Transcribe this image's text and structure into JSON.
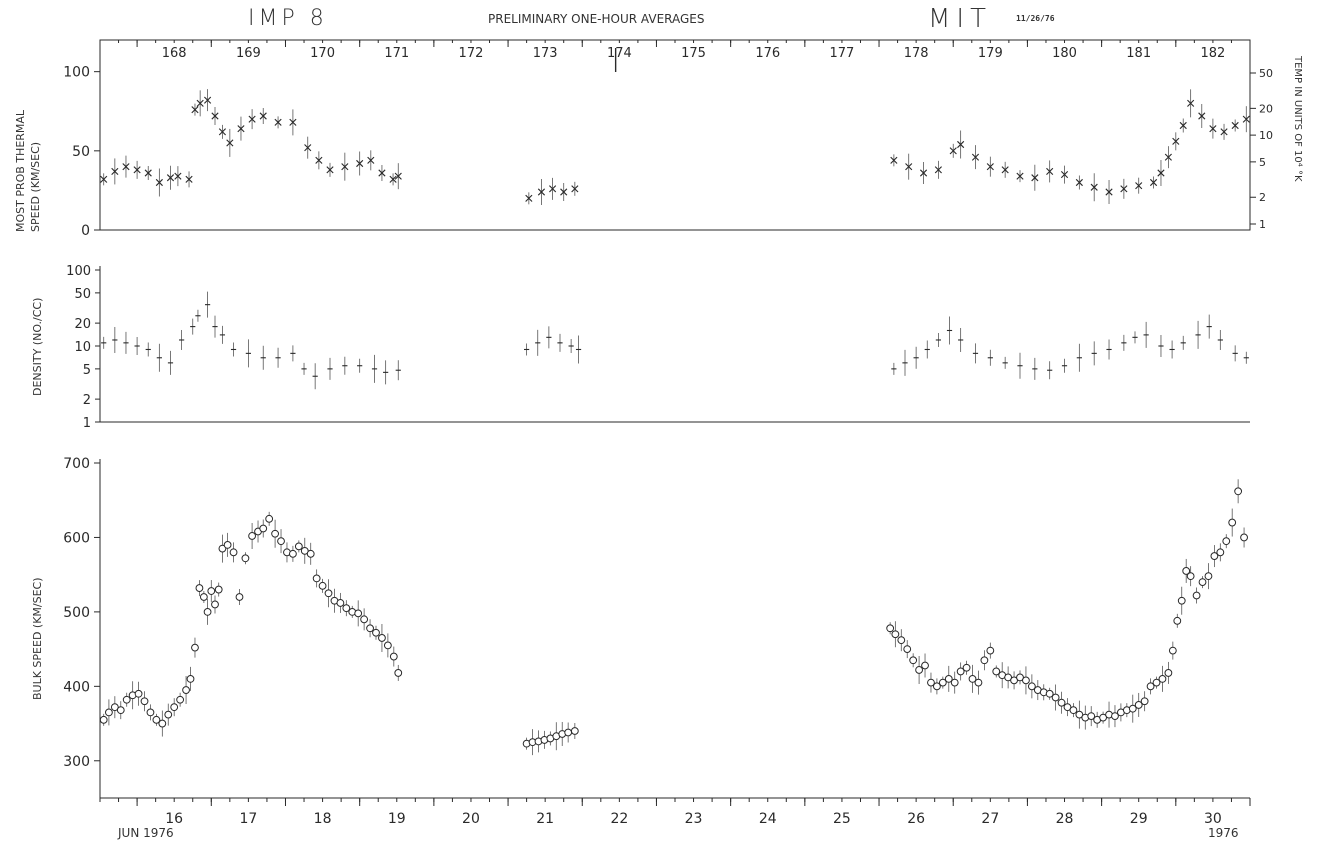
{
  "header": {
    "spacecraft": "IMP 8",
    "subtitle": "PRELIMINARY ONE-HOUR AVERAGES",
    "institution": "MIT",
    "date": "11/26/76"
  },
  "footer": {
    "month_year": "JUN 1976",
    "year_end": "1976"
  },
  "chart_data": [
    {
      "type": "scatter",
      "title": "",
      "ylabel_lines": [
        "MOST PROB THERMAL",
        "SPEED (KM/SEC)"
      ],
      "ylabel_right": "TEMP IN UNITS OF 10⁴ °K",
      "xlim": [
        15.5,
        31.0
      ],
      "ylim": [
        0,
        120
      ],
      "yticks": [
        0,
        50,
        100
      ],
      "yticks_right": [
        1,
        2,
        5,
        10,
        20,
        50
      ],
      "x_top_ticks": [
        "168",
        "169",
        "170",
        "171",
        "172",
        "173",
        "174",
        "175",
        "176",
        "177",
        "178",
        "179",
        "180",
        "181",
        "182"
      ],
      "marker": "x",
      "series": [
        {
          "x": [
            15.55,
            15.7,
            15.85,
            16.0,
            16.15,
            16.3,
            16.45,
            16.55,
            16.7
          ],
          "y": [
            32,
            37,
            40,
            38,
            36,
            30,
            33,
            34,
            32
          ]
        },
        {
          "x": [
            16.78,
            16.85,
            16.95,
            17.05,
            17.15,
            17.25,
            17.4,
            17.55,
            17.7,
            17.9,
            18.1,
            18.3,
            18.45,
            18.6,
            18.8,
            19.0,
            19.15,
            19.3,
            19.45,
            19.52
          ],
          "y": [
            76,
            80,
            82,
            72,
            62,
            55,
            64,
            70,
            72,
            68,
            68,
            52,
            44,
            38,
            40,
            42,
            44,
            36,
            32,
            34
          ]
        },
        {
          "x": [
            21.28,
            21.45,
            21.6,
            21.75,
            21.9
          ],
          "y": [
            20,
            24,
            26,
            24,
            26
          ]
        },
        {
          "x": [
            26.2,
            26.4,
            26.6,
            26.8,
            27.0,
            27.1,
            27.3,
            27.5,
            27.7,
            27.9,
            28.1,
            28.3,
            28.5,
            28.7,
            28.9,
            29.1,
            29.3,
            29.5,
            29.7,
            29.8,
            29.9,
            30.0,
            30.1,
            30.2,
            30.35,
            30.5,
            30.65,
            30.8,
            30.95
          ],
          "y": [
            44,
            40,
            36,
            38,
            50,
            54,
            46,
            40,
            38,
            34,
            33,
            37,
            35,
            30,
            27,
            24,
            26,
            28,
            30,
            36,
            46,
            56,
            66,
            80,
            72,
            64,
            62,
            66,
            70
          ]
        }
      ]
    },
    {
      "type": "scatter",
      "title": "",
      "ylabel": "DENSITY (NO./CC)",
      "yscale": "log",
      "ylim": [
        1,
        100
      ],
      "yticks": [
        1,
        2,
        5,
        10,
        20,
        50,
        100
      ],
      "marker": "+",
      "series": [
        {
          "x": [
            15.55,
            15.7,
            15.85,
            16.0,
            16.15,
            16.3,
            16.45,
            16.6,
            16.75,
            16.82,
            16.95,
            17.05,
            17.15,
            17.3,
            17.5,
            17.7,
            17.9,
            18.1,
            18.25,
            18.4,
            18.6,
            18.8,
            19.0,
            19.2,
            19.35,
            19.52
          ],
          "y": [
            11,
            12,
            11,
            10,
            9,
            7,
            6,
            12,
            18,
            25,
            35,
            18,
            14,
            9,
            8,
            7,
            7,
            8,
            5,
            4,
            5,
            5.5,
            5.5,
            5,
            4.5,
            4.8
          ]
        },
        {
          "x": [
            21.25,
            21.4,
            21.55,
            21.7,
            21.85,
            21.95
          ],
          "y": [
            9,
            11,
            13,
            11,
            10,
            9
          ]
        },
        {
          "x": [
            26.2,
            26.35,
            26.5,
            26.65,
            26.8,
            26.95,
            27.1,
            27.3,
            27.5,
            27.7,
            27.9,
            28.1,
            28.3,
            28.5,
            28.7,
            28.9,
            29.1,
            29.3,
            29.45,
            29.6,
            29.8,
            29.95,
            30.1,
            30.3,
            30.45,
            30.6,
            30.8,
            30.95
          ],
          "y": [
            5,
            6,
            7,
            9,
            12,
            16,
            12,
            8,
            7,
            6,
            5.5,
            5,
            4.8,
            5.5,
            7,
            8,
            9,
            11,
            13,
            14,
            10,
            9,
            11,
            14,
            18,
            12,
            8,
            7
          ]
        }
      ]
    },
    {
      "type": "scatter",
      "title": "",
      "ylabel": "BULK SPEED (KM/SEC)",
      "ylim": [
        250,
        700
      ],
      "yticks": [
        300,
        400,
        500,
        600,
        700
      ],
      "x_bottom_ticks": [
        "16",
        "17",
        "18",
        "19",
        "20",
        "21",
        "22",
        "23",
        "24",
        "25",
        "26",
        "27",
        "28",
        "29",
        "30"
      ],
      "marker": "o",
      "series": [
        {
          "x": [
            15.55,
            15.62,
            15.7,
            15.78,
            15.86,
            15.94,
            16.02,
            16.1,
            16.18,
            16.26,
            16.34,
            16.42,
            16.5,
            16.58,
            16.66,
            16.72,
            16.78,
            16.84,
            16.9,
            16.95,
            17.0,
            17.05,
            17.1,
            17.15,
            17.22,
            17.3,
            17.38,
            17.46,
            17.55,
            17.63,
            17.7,
            17.78,
            17.86,
            17.94,
            18.02,
            18.1,
            18.18,
            18.26,
            18.34,
            18.42,
            18.5,
            18.58,
            18.66,
            18.74,
            18.82,
            18.9,
            18.98,
            19.06,
            19.14,
            19.22,
            19.3,
            19.38,
            19.46,
            19.52
          ],
          "y": [
            355,
            365,
            372,
            368,
            382,
            388,
            390,
            380,
            365,
            355,
            350,
            362,
            372,
            382,
            395,
            410,
            452,
            532,
            520,
            500,
            528,
            510,
            530,
            585,
            590,
            580,
            520,
            572,
            602,
            608,
            612,
            625,
            605,
            595,
            580,
            578,
            588,
            582,
            578,
            545,
            535,
            525,
            515,
            512,
            505,
            500,
            498,
            490,
            478,
            472,
            465,
            455,
            440,
            418
          ]
        },
        {
          "x": [
            21.25,
            21.33,
            21.41,
            21.49,
            21.57,
            21.65,
            21.73,
            21.81,
            21.9
          ],
          "y": [
            323,
            325,
            326,
            328,
            330,
            333,
            336,
            338,
            340
          ]
        },
        {
          "x": [
            26.15,
            26.22,
            26.3,
            26.38,
            26.46,
            26.54,
            26.62,
            26.7,
            26.78,
            26.86,
            26.94,
            27.02,
            27.1,
            27.18,
            27.26,
            27.34,
            27.42,
            27.5,
            27.58,
            27.66,
            27.74,
            27.82,
            27.9,
            27.98,
            28.06,
            28.14,
            28.22,
            28.3,
            28.38,
            28.46,
            28.54,
            28.62,
            28.7,
            28.78,
            28.86,
            28.94,
            29.02,
            29.1,
            29.18,
            29.26,
            29.34,
            29.42,
            29.5,
            29.58,
            29.66,
            29.74,
            29.82,
            29.9,
            29.96,
            30.02,
            30.08,
            30.14,
            30.2,
            30.28,
            30.36,
            30.44,
            30.52,
            30.6,
            30.68,
            30.76,
            30.84,
            30.92
          ],
          "y": [
            478,
            470,
            462,
            450,
            435,
            422,
            428,
            405,
            400,
            405,
            410,
            405,
            420,
            425,
            410,
            405,
            435,
            448,
            420,
            415,
            412,
            408,
            412,
            408,
            400,
            395,
            392,
            390,
            385,
            378,
            372,
            368,
            362,
            358,
            360,
            355,
            358,
            362,
            360,
            365,
            368,
            370,
            375,
            380,
            400,
            405,
            410,
            418,
            448,
            488,
            515,
            555,
            548,
            522,
            540,
            548,
            575,
            580,
            595,
            620,
            662,
            600
          ]
        }
      ]
    }
  ]
}
